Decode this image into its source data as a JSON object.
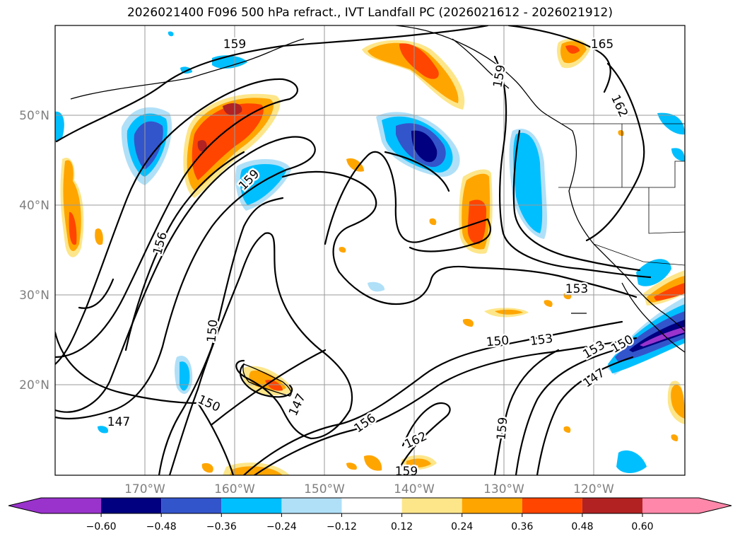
{
  "title": "2026021400 F096 500 hPa refract., IVT Landfall PC (2026021612 - 2026021912)",
  "lat_labels": [
    "50°N",
    "40°N",
    "30°N",
    "20°N"
  ],
  "lon_labels": [
    "170°W",
    "160°W",
    "150°W",
    "140°W",
    "130°W",
    "120°W"
  ],
  "contour_labels": [
    "159",
    "165",
    "162",
    "159",
    "159",
    "156",
    "153",
    "150",
    "150",
    "153",
    "153",
    "150",
    "147",
    "150",
    "147",
    "147",
    "156",
    "162",
    "159",
    "159"
  ],
  "colorbar": {
    "ticks": [
      "−0.60",
      "−0.48",
      "−0.36",
      "−0.24",
      "−0.12",
      "0.12",
      "0.24",
      "0.36",
      "0.48",
      "0.60"
    ],
    "colors": [
      "#9933cc",
      "#000080",
      "#3355cc",
      "#00bfff",
      "#b0e0f8",
      "#ffffff",
      "#fde68a",
      "#ffa500",
      "#ff4500",
      "#b22222",
      "#ff88aa"
    ]
  }
}
